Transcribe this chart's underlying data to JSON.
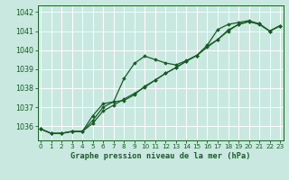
{
  "title": "Graphe pression niveau de la mer (hPa)",
  "bg_color": "#c8e8e0",
  "grid_color": "#aad4cc",
  "line_color": "#1a5c28",
  "xlim": [
    -0.3,
    23.3
  ],
  "ylim": [
    1035.25,
    1042.35
  ],
  "yticks": [
    1036,
    1037,
    1038,
    1039,
    1040,
    1041,
    1042
  ],
  "xticks": [
    0,
    1,
    2,
    3,
    4,
    5,
    6,
    7,
    8,
    9,
    10,
    11,
    12,
    13,
    14,
    15,
    16,
    17,
    18,
    19,
    20,
    21,
    22,
    23
  ],
  "series1": [
    1035.85,
    1035.62,
    1035.62,
    1035.72,
    1035.72,
    1036.15,
    1036.8,
    1037.1,
    1037.42,
    1037.72,
    1038.05,
    1038.42,
    1038.78,
    1039.08,
    1039.42,
    1039.72,
    1040.15,
    1040.55,
    1041.0,
    1041.35,
    1041.5,
    1041.35,
    1041.0,
    1041.28
  ],
  "series2": [
    1035.85,
    1035.62,
    1035.62,
    1035.72,
    1035.72,
    1036.55,
    1037.18,
    1037.28,
    1038.5,
    1039.3,
    1039.68,
    1039.5,
    1039.32,
    1039.22,
    1039.45,
    1039.72,
    1040.2,
    1040.55,
    1041.05,
    1041.35,
    1041.5,
    1041.38,
    1041.0,
    1041.28
  ],
  "series3": [
    1035.85,
    1035.62,
    1035.62,
    1035.72,
    1035.72,
    1036.3,
    1037.0,
    1037.28,
    1037.35,
    1037.65,
    1038.1,
    1038.42,
    1038.78,
    1039.08,
    1039.42,
    1039.72,
    1040.25,
    1041.08,
    1041.35,
    1041.45,
    1041.55,
    1041.38,
    1041.0,
    1041.28
  ]
}
